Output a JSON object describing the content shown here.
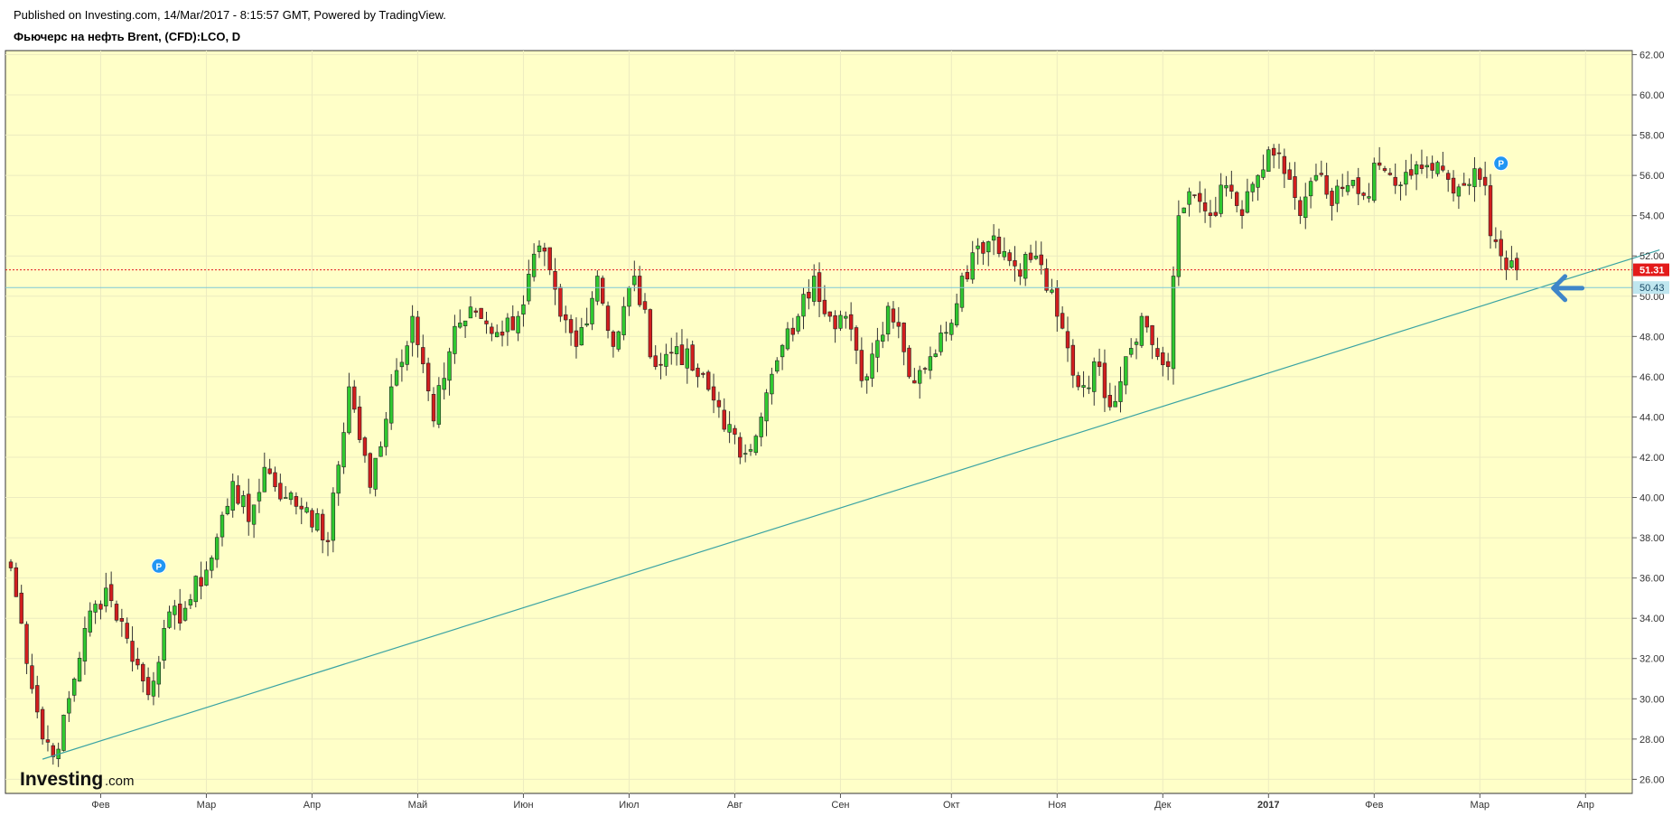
{
  "header": {
    "published": "Published on Investing.com, 14/Mar/2017 - 8:15:57 GMT, Powered by TradingView.",
    "instrument": "Фьючерс на нефть Brent, (CFD):LCO, D"
  },
  "logo": {
    "brand": "Investing",
    "suffix": ".com"
  },
  "colors": {
    "plot_background": "#ffffc8",
    "up_candle": "#2fc92f",
    "down_candle": "#d21e1e",
    "trendline": "#3aa3a3",
    "last_price": "#e31a1a",
    "level_line": "#7ec8d8",
    "marker": "#2196f3",
    "arrow": "#3f86c9"
  },
  "chart_data": {
    "type": "candlestick",
    "ylim": [
      25.3,
      62.2
    ],
    "y_ticks": [
      "26.00",
      "28.00",
      "30.00",
      "32.00",
      "34.00",
      "36.00",
      "38.00",
      "40.00",
      "42.00",
      "44.00",
      "46.00",
      "48.00",
      "50.00",
      "52.00",
      "54.00",
      "56.00",
      "58.00",
      "60.00",
      "62.00"
    ],
    "x_ticks": [
      {
        "label": "Фев",
        "bold": false,
        "index": 17
      },
      {
        "label": "Мар",
        "bold": false,
        "index": 37
      },
      {
        "label": "Апр",
        "bold": false,
        "index": 57
      },
      {
        "label": "Май",
        "bold": false,
        "index": 77
      },
      {
        "label": "Июн",
        "bold": false,
        "index": 97
      },
      {
        "label": "Июл",
        "bold": false,
        "index": 117
      },
      {
        "label": "Авг",
        "bold": false,
        "index": 137
      },
      {
        "label": "Сен",
        "bold": false,
        "index": 157
      },
      {
        "label": "Окт",
        "bold": false,
        "index": 178
      },
      {
        "label": "Ноя",
        "bold": false,
        "index": 198
      },
      {
        "label": "Дек",
        "bold": false,
        "index": 218
      },
      {
        "label": "2017",
        "bold": true,
        "index": 238
      },
      {
        "label": "Фев",
        "bold": false,
        "index": 258
      },
      {
        "label": "Мар",
        "bold": false,
        "index": 278
      },
      {
        "label": "Апр",
        "bold": false,
        "index": 298
      }
    ],
    "key_points": [
      [
        0,
        36.5
      ],
      [
        6,
        28.0
      ],
      [
        9,
        27.5
      ],
      [
        14,
        33.5
      ],
      [
        18,
        35.5
      ],
      [
        22,
        33.0
      ],
      [
        26,
        30.2
      ],
      [
        29,
        33.5
      ],
      [
        33,
        34.5
      ],
      [
        38,
        37.0
      ],
      [
        42,
        40.8
      ],
      [
        45,
        38.8
      ],
      [
        48,
        41.5
      ],
      [
        52,
        40.0
      ],
      [
        56,
        39.5
      ],
      [
        60,
        37.8
      ],
      [
        64,
        45.5
      ],
      [
        68,
        40.5
      ],
      [
        72,
        45.5
      ],
      [
        76,
        49.0
      ],
      [
        80,
        43.8
      ],
      [
        84,
        48.5
      ],
      [
        88,
        49.2
      ],
      [
        92,
        48.2
      ],
      [
        96,
        49.0
      ],
      [
        100,
        52.5
      ],
      [
        104,
        49.0
      ],
      [
        107,
        47.5
      ],
      [
        111,
        51.0
      ],
      [
        114,
        47.5
      ],
      [
        118,
        51.0
      ],
      [
        122,
        46.5
      ],
      [
        126,
        47.5
      ],
      [
        130,
        46.0
      ],
      [
        134,
        44.5
      ],
      [
        138,
        42.0
      ],
      [
        142,
        44.0
      ],
      [
        145,
        46.8
      ],
      [
        149,
        49.0
      ],
      [
        152,
        51.0
      ],
      [
        155,
        49.0
      ],
      [
        158,
        49.0
      ],
      [
        161,
        45.8
      ],
      [
        164,
        47.8
      ],
      [
        166,
        49.5
      ],
      [
        168,
        48.5
      ],
      [
        170,
        46.0
      ],
      [
        174,
        47.0
      ],
      [
        177,
        48.2
      ],
      [
        180,
        51.0
      ],
      [
        183,
        52.5
      ],
      [
        186,
        53.0
      ],
      [
        190,
        51.5
      ],
      [
        194,
        52.0
      ],
      [
        198,
        49.0
      ],
      [
        202,
        45.5
      ],
      [
        206,
        46.5
      ],
      [
        208,
        44.5
      ],
      [
        211,
        47.0
      ],
      [
        214,
        49.0
      ],
      [
        217,
        47.0
      ],
      [
        219,
        46.5
      ],
      [
        220,
        51.0
      ],
      [
        221,
        54.0
      ],
      [
        224,
        55.0
      ],
      [
        227,
        54.0
      ],
      [
        230,
        55.5
      ],
      [
        233,
        54.0
      ],
      [
        236,
        56.0
      ],
      [
        239,
        57.0
      ],
      [
        242,
        55.8
      ],
      [
        244,
        54.0
      ],
      [
        247,
        56.0
      ],
      [
        250,
        54.5
      ],
      [
        253,
        55.5
      ],
      [
        256,
        55.0
      ],
      [
        259,
        56.5
      ],
      [
        262,
        55.5
      ],
      [
        265,
        56.0
      ],
      [
        268,
        56.5
      ],
      [
        272,
        55.8
      ],
      [
        275,
        55.5
      ],
      [
        278,
        55.8
      ],
      [
        279,
        55.5
      ],
      [
        280,
        53.0
      ],
      [
        282,
        52.0
      ],
      [
        285,
        51.3
      ]
    ],
    "trendline": {
      "start": [
        6,
        27.0
      ],
      "end": [
        312,
        52.3
      ]
    },
    "lines": [
      {
        "name": "last_price",
        "value": 51.31,
        "label": "51.31",
        "style": "dotted"
      },
      {
        "name": "level",
        "value": 50.43,
        "label": "50.43",
        "style": "solid"
      }
    ],
    "markers": [
      {
        "label": "P",
        "index": 28,
        "price": 36.6
      },
      {
        "label": "P",
        "index": 282,
        "price": 56.6
      }
    ],
    "arrow": {
      "index": 296,
      "price": 50.4
    }
  }
}
